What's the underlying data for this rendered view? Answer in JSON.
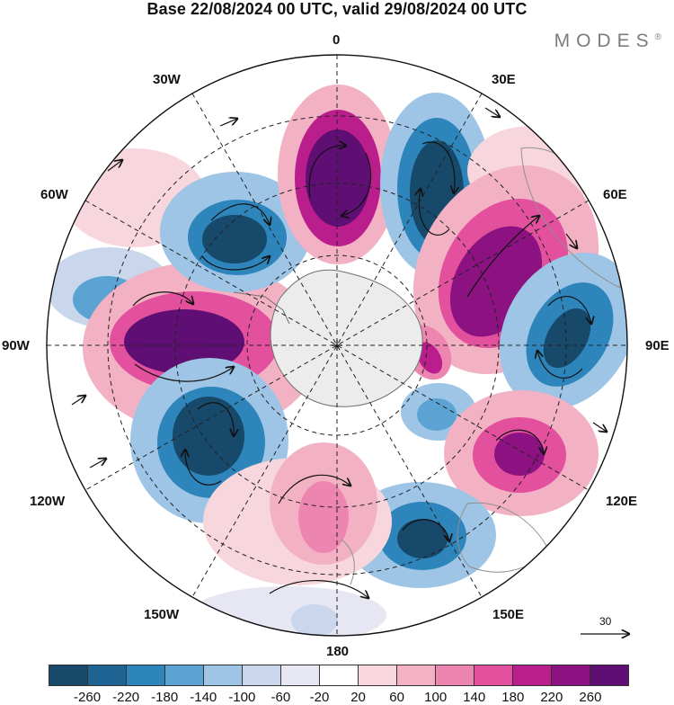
{
  "title": "Base 22/08/2024 00 UTC, valid 29/08/2024 00 UTC",
  "brand": "MODES",
  "brand_mark": "®",
  "map": {
    "labels": {
      "north": "0",
      "south": "180",
      "east_90": "90E",
      "west_90": "90W",
      "east_30": "30E",
      "east_60": "60E",
      "east_120": "120E",
      "east_150": "150E",
      "west_30": "30W",
      "west_60": "60W",
      "west_120": "120W",
      "west_150": "150W"
    },
    "vector_scale": "30"
  },
  "colorbar": {
    "ticks": [
      "-260",
      "-220",
      "-180",
      "-140",
      "-100",
      "-60",
      "-20",
      "20",
      "60",
      "100",
      "140",
      "180",
      "220",
      "260"
    ],
    "colors": [
      "#16496a",
      "#1d6493",
      "#2d85bb",
      "#5aa3d2",
      "#9ec5e6",
      "#c9d6ec",
      "#e7e7f3",
      "#ffffff",
      "#f7d7dd",
      "#f2b2c4",
      "#ec86b0",
      "#e2509e",
      "#ba1e8c",
      "#8b1280",
      "#5f0f73"
    ]
  },
  "icons": {
    "north_pole_marker": "center-cross-icon",
    "scale_arrow": "arrow-right-icon"
  }
}
